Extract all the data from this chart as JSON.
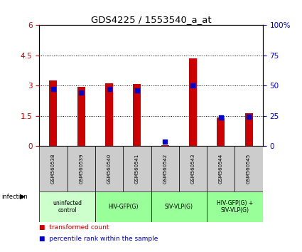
{
  "title": "GDS4225 / 1553540_a_at",
  "samples": [
    "GSM560538",
    "GSM560539",
    "GSM560540",
    "GSM560541",
    "GSM560542",
    "GSM560543",
    "GSM560544",
    "GSM560545"
  ],
  "red_values": [
    3.25,
    2.95,
    3.12,
    3.08,
    0.05,
    4.35,
    1.42,
    1.62
  ],
  "blue_values": [
    2.85,
    2.65,
    2.85,
    2.75,
    0.22,
    3.02,
    1.42,
    1.45
  ],
  "ylim_left": [
    0,
    6
  ],
  "ylim_right": [
    0,
    100
  ],
  "yticks_left": [
    0,
    1.5,
    3.0,
    4.5,
    6.0
  ],
  "ytick_labels_left": [
    "0",
    "1.5",
    "3",
    "4.5",
    "6"
  ],
  "yticks_right": [
    0,
    25,
    50,
    75,
    100
  ],
  "ytick_labels_right": [
    "0",
    "25",
    "50",
    "75",
    "100%"
  ],
  "bar_color": "#cc0000",
  "dot_color": "#0000cc",
  "bar_width": 0.28,
  "dot_size": 22,
  "bg_color": "#ffffff",
  "tick_area_color": "#cccccc",
  "group_area_uninfected": "#ccffcc",
  "group_area_infected": "#99ff99",
  "infection_label": "infection",
  "legend_red": "transformed count",
  "legend_blue": "percentile rank within the sample",
  "gridline_yticks": [
    1.5,
    3.0,
    4.5
  ]
}
